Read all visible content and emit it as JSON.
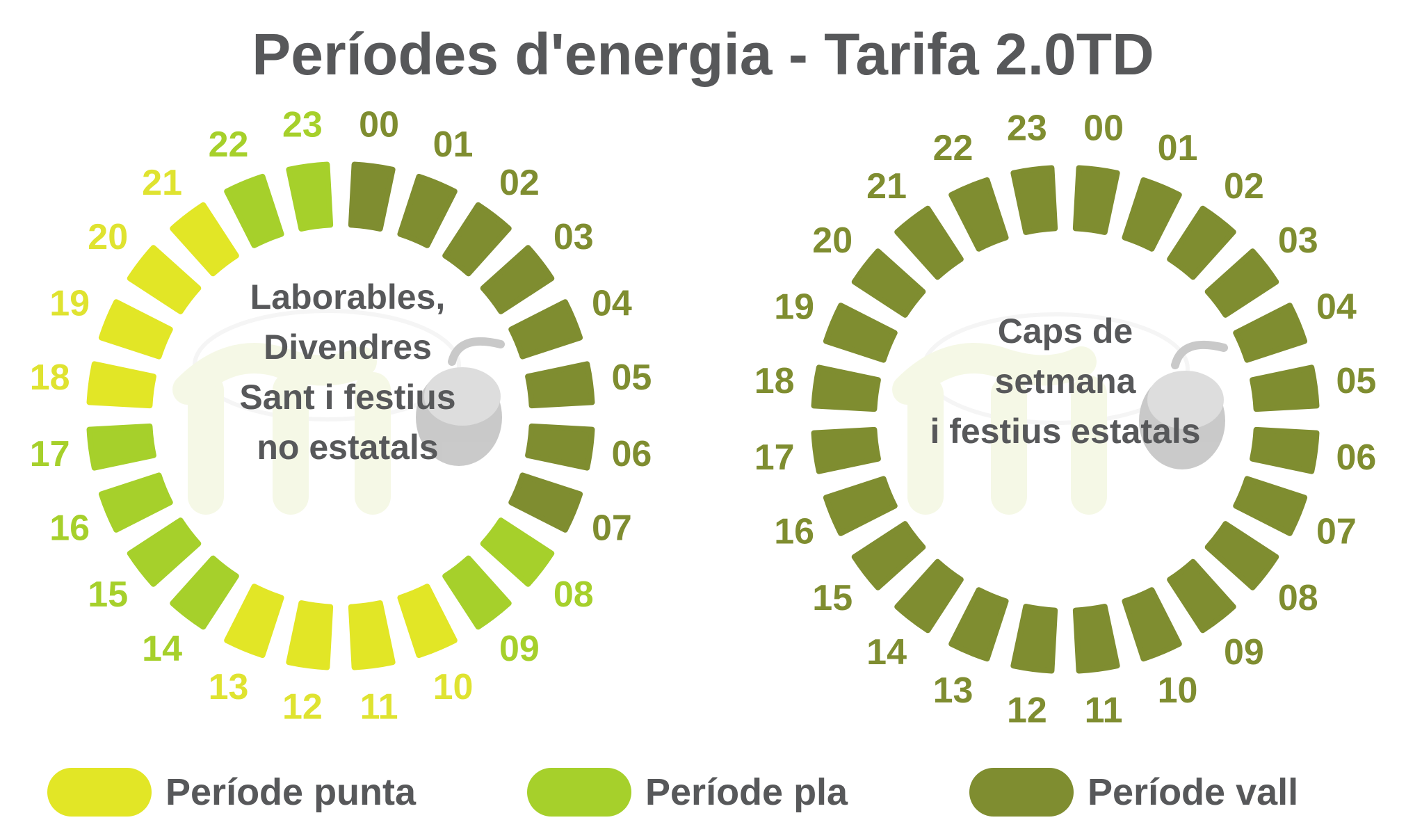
{
  "title": "Períodes d'energia - Tarifa 2.0TD",
  "colors": {
    "punta": "#e2e626",
    "pla": "#a6d02b",
    "vall": "#7f8d30",
    "hour_label_punta": "#dfe330",
    "hour_label_pla": "#a6d02b",
    "hour_label_vall": "#7f8d30",
    "text": "#57585a"
  },
  "wheels": [
    {
      "lines": [
        "Laborables,",
        "Divendres",
        "Sant i festius",
        "no estatals"
      ],
      "hours": [
        "00",
        "01",
        "02",
        "03",
        "04",
        "05",
        "06",
        "07",
        "08",
        "09",
        "10",
        "11",
        "12",
        "13",
        "14",
        "15",
        "16",
        "17",
        "18",
        "19",
        "20",
        "21",
        "22",
        "23"
      ],
      "periods": [
        "vall",
        "vall",
        "vall",
        "vall",
        "vall",
        "vall",
        "vall",
        "vall",
        "pla",
        "pla",
        "punta",
        "punta",
        "punta",
        "punta",
        "pla",
        "pla",
        "pla",
        "pla",
        "punta",
        "punta",
        "punta",
        "punta",
        "pla",
        "pla"
      ]
    },
    {
      "lines": [
        "Caps de",
        "setmana",
        "i festius estatals"
      ],
      "hours": [
        "00",
        "01",
        "02",
        "03",
        "04",
        "05",
        "06",
        "07",
        "08",
        "09",
        "10",
        "11",
        "12",
        "13",
        "14",
        "15",
        "16",
        "17",
        "18",
        "19",
        "20",
        "21",
        "22",
        "23"
      ],
      "periods": [
        "vall",
        "vall",
        "vall",
        "vall",
        "vall",
        "vall",
        "vall",
        "vall",
        "vall",
        "vall",
        "vall",
        "vall",
        "vall",
        "vall",
        "vall",
        "vall",
        "vall",
        "vall",
        "vall",
        "vall",
        "vall",
        "vall",
        "vall",
        "vall"
      ]
    }
  ],
  "legend": [
    {
      "key": "punta",
      "label": "Període punta"
    },
    {
      "key": "pla",
      "label": "Període pla"
    },
    {
      "key": "vall",
      "label": "Període vall"
    }
  ]
}
